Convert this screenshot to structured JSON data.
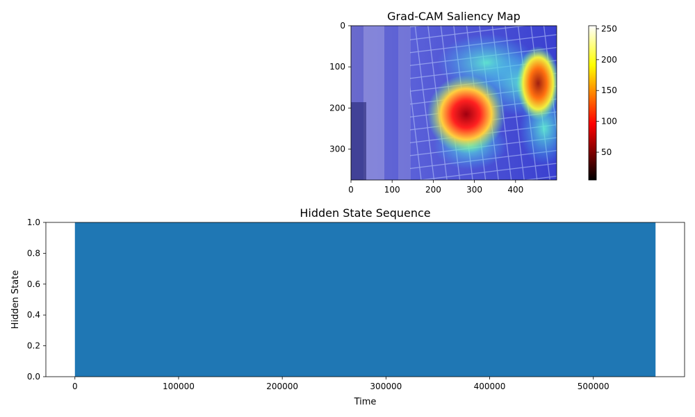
{
  "chart_data": [
    {
      "type": "heatmap",
      "title": "Grad-CAM Saliency Map",
      "xlabel": "",
      "ylabel": "",
      "x_range": [
        0,
        500
      ],
      "y_range": [
        0,
        375
      ],
      "x_ticks": [
        0,
        100,
        200,
        300,
        400
      ],
      "y_ticks": [
        0,
        100,
        200,
        300
      ],
      "colorbar": {
        "colormap": "hot",
        "range": [
          5,
          255
        ],
        "ticks": [
          50,
          100,
          150,
          200,
          250
        ]
      },
      "hotspots": [
        {
          "x": 280,
          "y": 215,
          "intensity": 1.0
        },
        {
          "x": 455,
          "y": 140,
          "intensity": 0.95
        }
      ]
    },
    {
      "type": "area",
      "title": "Hidden State Sequence",
      "xlabel": "Time",
      "ylabel": "Hidden State",
      "x": [
        0,
        560000
      ],
      "values": [
        1.0,
        1.0
      ],
      "series_color": "#1f77b4",
      "xlim": [
        -28000,
        588000
      ],
      "ylim": [
        0,
        1
      ],
      "x_ticks": [
        0,
        100000,
        200000,
        300000,
        400000,
        500000
      ],
      "y_ticks": [
        "0.0",
        "0.2",
        "0.4",
        "0.6",
        "0.8",
        "1.0"
      ]
    }
  ]
}
